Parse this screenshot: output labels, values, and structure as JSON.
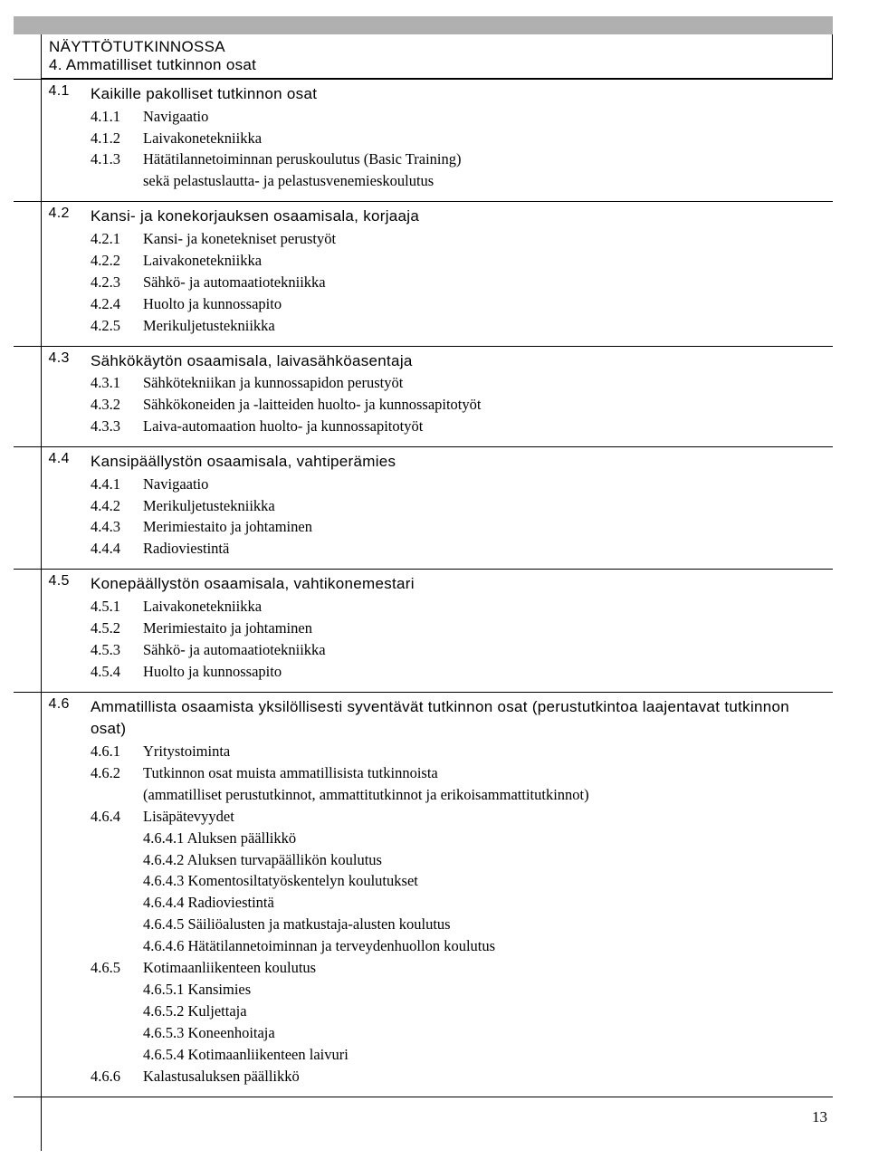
{
  "header": {
    "title_line1": "NÄYTTÖTUTKINNOSSA",
    "title_line2": "4. Ammatilliset tutkinnon osat"
  },
  "sections": [
    {
      "num": "4.1",
      "title": "Kaikille pakolliset tutkinnon osat",
      "title_cond": true,
      "items": [
        {
          "num": "4.1.1",
          "text": "Navigaatio"
        },
        {
          "num": "4.1.2",
          "text": "Laivakonetekniikka"
        },
        {
          "num": "4.1.3",
          "text": "Hätätilannetoiminnan peruskoulutus (Basic Training)"
        },
        {
          "num": "",
          "text": "sekä pelastuslautta- ja pelastusvenemieskoulutus"
        }
      ]
    },
    {
      "num": "4.2",
      "title": "Kansi- ja konekorjauksen osaamisala, korjaaja",
      "title_cond": true,
      "items": [
        {
          "num": "4.2.1",
          "text": "Kansi- ja konetekniset perustyöt"
        },
        {
          "num": "4.2.2",
          "text": "Laivakonetekniikka"
        },
        {
          "num": "4.2.3",
          "text": "Sähkö- ja automaatiotekniikka"
        },
        {
          "num": "4.2.4",
          "text": "Huolto ja kunnossapito"
        },
        {
          "num": "4.2.5",
          "text": "Merikuljetustekniikka"
        }
      ]
    },
    {
      "num": "4.3",
      "title": "Sähkökäytön osaamisala, laivasähköasentaja",
      "title_cond": true,
      "items": [
        {
          "num": "4.3.1",
          "text": "Sähkötekniikan ja kunnossapidon perustyöt"
        },
        {
          "num": "4.3.2",
          "text": "Sähkökoneiden ja -laitteiden huolto- ja kunnossapitotyöt"
        },
        {
          "num": "4.3.3",
          "text": "Laiva-automaation huolto- ja kunnossapitotyöt"
        }
      ]
    },
    {
      "num": "4.4",
      "title": "Kansipäällystön osaamisala, vahtiperämies",
      "title_cond": true,
      "items": [
        {
          "num": "4.4.1",
          "text": "Navigaatio"
        },
        {
          "num": "4.4.2",
          "text": "Merikuljetustekniikka"
        },
        {
          "num": "4.4.3",
          "text": "Merimiestaito ja johtaminen"
        },
        {
          "num": "4.4.4",
          "text": "Radioviestintä"
        }
      ]
    },
    {
      "num": "4.5",
      "title": "Konepäällystön osaamisala, vahtikonemestari",
      "title_cond": true,
      "items": [
        {
          "num": "4.5.1",
          "text": "Laivakonetekniikka"
        },
        {
          "num": "4.5.2",
          "text": "Merimiestaito ja johtaminen"
        },
        {
          "num": "4.5.3",
          "text": "Sähkö- ja automaatiotekniikka"
        },
        {
          "num": "4.5.4",
          "text": "Huolto ja kunnossapito"
        }
      ]
    },
    {
      "num": "4.6",
      "title": "Ammatillista osaamista yksilöllisesti syventävät tutkinnon osat (perustutkintoa laajentavat tutkinnon osat)",
      "title_cond": true,
      "items": [
        {
          "num": "4.6.1",
          "text": "Yritystoiminta"
        },
        {
          "num": "4.6.2",
          "text": "Tutkinnon osat muista ammatillisista tutkinnoista"
        },
        {
          "num": "",
          "text": "(ammatilliset perustutkinnot, ammattitutkinnot ja erikoisammattitutkinnot)"
        },
        {
          "num": "4.6.4",
          "text": "Lisäpätevyydet"
        },
        {
          "num": "",
          "indent": true,
          "text": "4.6.4.1 Aluksen päällikkö"
        },
        {
          "num": "",
          "indent": true,
          "text": "4.6.4.2 Aluksen turvapäällikön koulutus"
        },
        {
          "num": "",
          "indent": true,
          "text": "4.6.4.3 Komentosiltatyöskentelyn koulutukset"
        },
        {
          "num": "",
          "indent": true,
          "text": "4.6.4.4 Radioviestintä"
        },
        {
          "num": "",
          "indent": true,
          "text": "4.6.4.5 Säiliöalusten ja matkustaja-alusten koulutus"
        },
        {
          "num": "",
          "indent": true,
          "text": "4.6.4.6 Hätätilannetoiminnan ja terveydenhuollon koulutus"
        },
        {
          "num": "4.6.5",
          "text": "Kotimaanliikenteen koulutus"
        },
        {
          "num": "",
          "indent": true,
          "text": "4.6.5.1 Kansimies"
        },
        {
          "num": "",
          "indent": true,
          "text": "4.6.5.2 Kuljettaja"
        },
        {
          "num": "",
          "indent": true,
          "text": "4.6.5.3 Koneenhoitaja"
        },
        {
          "num": "",
          "indent": true,
          "text": "4.6.5.4 Kotimaanliikenteen laivuri"
        },
        {
          "num": "4.6.6",
          "text": "Kalastusaluksen päällikkö"
        }
      ]
    }
  ],
  "page_number": "13",
  "colors": {
    "header_bar": "#b0b0b0",
    "text": "#000000",
    "bg": "#ffffff",
    "border": "#000000"
  }
}
